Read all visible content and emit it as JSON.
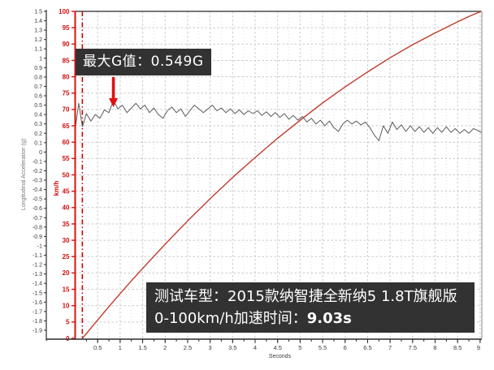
{
  "page": {
    "background": "#ffffff"
  },
  "colors": {
    "speed_line": "#c0392b",
    "speed_axis": "#dd1111",
    "speed_axis_text": "#cc1111",
    "accel_line": "#5a5a5a",
    "accel_axis": "#2a2a2a",
    "accel_axis_text": "#3a3a3a",
    "grid_major": "#c9c9c9",
    "grid_minor": "#e0e0e0",
    "grid_top_line": "#4a4a4a",
    "plot_border": "#9a9a9a",
    "x_axis": "#2a2a2a",
    "x_axis_text": "#3a3a3a",
    "launch_line": "#cc0000",
    "arrow": "#e01010",
    "annotation_bg": "#323232",
    "annotation_text": "#ffffff"
  },
  "chart_data": {
    "type": "line",
    "xlabel": "Seconds",
    "x_axis": {
      "min": 0,
      "max": 9.02,
      "major_step": 0.5,
      "minor_step": 0.25,
      "tick_labels": [
        0.5,
        1,
        1.5,
        2,
        2.5,
        3,
        3.5,
        4,
        4.5,
        5,
        5.5,
        6,
        6.5,
        7,
        7.5,
        8,
        8.5,
        9
      ]
    },
    "y_axis_g": {
      "label": "Longitudinal Acceleration (g)",
      "min": -1.9,
      "max": 1.5,
      "step": 0.1
    },
    "y_axis_kmh": {
      "label": "km/h",
      "min": 0,
      "max": 100,
      "step": 5
    },
    "launch_time_s": 0.16,
    "series": [
      {
        "name": "speed_kmh",
        "axis": "kmh",
        "points": [
          [
            0.16,
            0
          ],
          [
            0.3,
            2.3
          ],
          [
            0.5,
            5.6
          ],
          [
            0.75,
            9.7
          ],
          [
            1,
            13.7
          ],
          [
            1.25,
            17.6
          ],
          [
            1.5,
            21.4
          ],
          [
            2,
            28.8
          ],
          [
            2.5,
            35.9
          ],
          [
            3,
            42.7
          ],
          [
            3.5,
            49.2
          ],
          [
            4,
            55.3
          ],
          [
            4.5,
            61.2
          ],
          [
            5,
            66.7
          ],
          [
            5.5,
            72
          ],
          [
            6,
            76.9
          ],
          [
            6.5,
            81.5
          ],
          [
            7,
            85.8
          ],
          [
            7.5,
            89.8
          ],
          [
            8,
            93.4
          ],
          [
            8.5,
            96.8
          ],
          [
            8.75,
            98.4
          ],
          [
            9.02,
            100
          ]
        ]
      },
      {
        "name": "longitudinal_acceleration_g",
        "axis": "g",
        "points": [
          [
            0,
            0.24
          ],
          [
            0.08,
            0.52
          ],
          [
            0.16,
            0.27
          ],
          [
            0.25,
            0.41
          ],
          [
            0.35,
            0.33
          ],
          [
            0.45,
            0.4
          ],
          [
            0.55,
            0.36
          ],
          [
            0.65,
            0.45
          ],
          [
            0.75,
            0.42
          ],
          [
            0.85,
            0.549
          ],
          [
            0.95,
            0.46
          ],
          [
            1.05,
            0.5
          ],
          [
            1.15,
            0.42
          ],
          [
            1.25,
            0.47
          ],
          [
            1.35,
            0.52
          ],
          [
            1.45,
            0.46
          ],
          [
            1.55,
            0.5
          ],
          [
            1.65,
            0.42
          ],
          [
            1.75,
            0.47
          ],
          [
            1.85,
            0.4
          ],
          [
            1.95,
            0.36
          ],
          [
            2.05,
            0.44
          ],
          [
            2.15,
            0.48
          ],
          [
            2.25,
            0.42
          ],
          [
            2.35,
            0.46
          ],
          [
            2.45,
            0.38
          ],
          [
            2.55,
            0.44
          ],
          [
            2.65,
            0.5
          ],
          [
            2.75,
            0.46
          ],
          [
            2.85,
            0.42
          ],
          [
            2.95,
            0.46
          ],
          [
            3.05,
            0.5
          ],
          [
            3.15,
            0.44
          ],
          [
            3.25,
            0.47
          ],
          [
            3.35,
            0.42
          ],
          [
            3.45,
            0.46
          ],
          [
            3.55,
            0.41
          ],
          [
            3.65,
            0.45
          ],
          [
            3.75,
            0.4
          ],
          [
            3.85,
            0.44
          ],
          [
            3.95,
            0.41
          ],
          [
            4.05,
            0.44
          ],
          [
            4.15,
            0.39
          ],
          [
            4.25,
            0.43
          ],
          [
            4.35,
            0.38
          ],
          [
            4.45,
            0.42
          ],
          [
            4.55,
            0.37
          ],
          [
            4.65,
            0.41
          ],
          [
            4.75,
            0.35
          ],
          [
            4.85,
            0.39
          ],
          [
            4.95,
            0.34
          ],
          [
            5.05,
            0.38
          ],
          [
            5.15,
            0.32
          ],
          [
            5.25,
            0.36
          ],
          [
            5.35,
            0.3
          ],
          [
            5.45,
            0.34
          ],
          [
            5.55,
            0.28
          ],
          [
            5.65,
            0.33
          ],
          [
            5.75,
            0.26
          ],
          [
            5.85,
            0.22
          ],
          [
            5.95,
            0.3
          ],
          [
            6.05,
            0.34
          ],
          [
            6.15,
            0.3
          ],
          [
            6.25,
            0.33
          ],
          [
            6.35,
            0.29
          ],
          [
            6.45,
            0.32
          ],
          [
            6.55,
            0.26
          ],
          [
            6.65,
            0.18
          ],
          [
            6.75,
            0.12
          ],
          [
            6.85,
            0.28
          ],
          [
            6.95,
            0.2
          ],
          [
            7.05,
            0.32
          ],
          [
            7.15,
            0.24
          ],
          [
            7.25,
            0.29
          ],
          [
            7.35,
            0.22
          ],
          [
            7.45,
            0.28
          ],
          [
            7.55,
            0.22
          ],
          [
            7.65,
            0.27
          ],
          [
            7.75,
            0.21
          ],
          [
            7.85,
            0.26
          ],
          [
            7.95,
            0.2
          ],
          [
            8.05,
            0.26
          ],
          [
            8.15,
            0.21
          ],
          [
            8.25,
            0.27
          ],
          [
            8.35,
            0.21
          ],
          [
            8.45,
            0.25
          ],
          [
            8.55,
            0.2
          ],
          [
            8.65,
            0.24
          ],
          [
            8.75,
            0.2
          ],
          [
            8.85,
            0.25
          ],
          [
            8.95,
            0.23
          ],
          [
            9.02,
            0.21
          ]
        ]
      }
    ],
    "annotations": {
      "max_g": {
        "text": "最大G值：0.549G",
        "arrow_time_s": 0.85,
        "value_g": 0.549
      },
      "result": {
        "line1": "测试车型：2015款纳智捷全新纳5 1.8T旗舰版",
        "line2_prefix": "0-100km/h加速时间：",
        "line2_value": "9.03s"
      }
    }
  }
}
